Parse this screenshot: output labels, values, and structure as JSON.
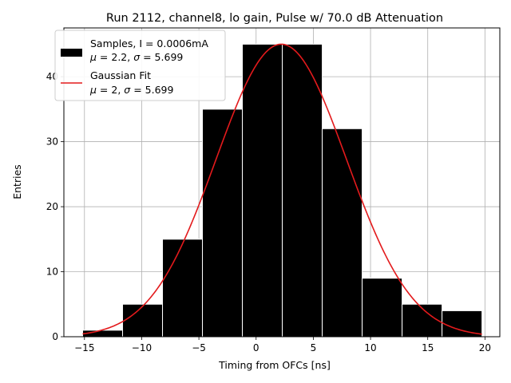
{
  "chart_data": {
    "type": "bar",
    "title": "Run 2112, channel8, lo gain, Pulse w/ 70.0 dB Attenuation",
    "xlabel": "Timing from OFCs [ns]",
    "ylabel": "Entries",
    "xlim": [
      -16.8,
      21.3
    ],
    "ylim": [
      0,
      47.5
    ],
    "grid": true,
    "legend_position": "top-left",
    "x_ticks": [
      -15,
      -10,
      -5,
      0,
      5,
      10,
      15,
      20
    ],
    "y_ticks": [
      0,
      10,
      20,
      30,
      40
    ],
    "histogram": {
      "name": "Samples",
      "legend_line1": "Samples, I = 0.0006mA",
      "legend_line2": "$\\mu$ = 2.2, $\\sigma$ = 5.699",
      "color": "#000000",
      "edgecolor": "#ffffff",
      "bin_edges": [
        -15.16,
        -11.67,
        -8.18,
        -4.69,
        -1.2,
        2.29,
        5.78,
        9.27,
        12.76,
        16.25,
        19.74
      ],
      "counts": [
        1,
        5,
        15,
        35,
        45,
        45,
        32,
        9,
        5,
        4
      ]
    },
    "fit": {
      "name": "Gaussian Fit",
      "legend_line1": "Gaussian Fit",
      "legend_line2": "$\\mu$ = 2, $\\sigma$ = 5.699",
      "color": "#e31a1c",
      "mu": 2.2,
      "sigma": 5.699,
      "amplitude": 45,
      "x_range": [
        -15.16,
        19.74
      ]
    }
  }
}
